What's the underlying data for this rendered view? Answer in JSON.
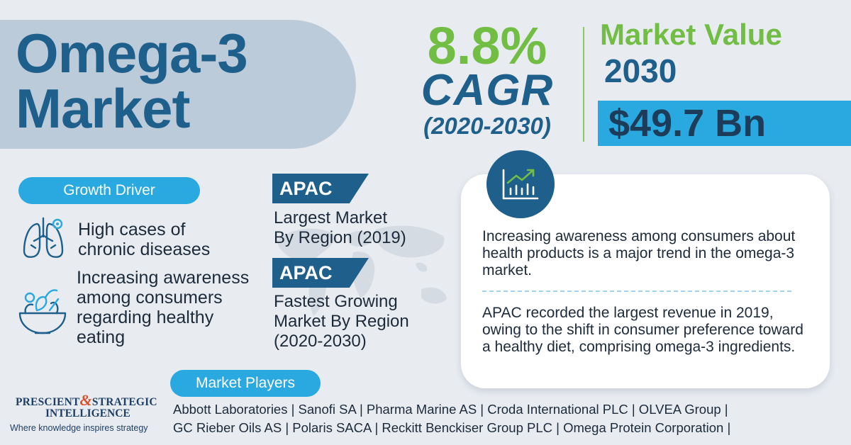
{
  "title": {
    "line1": "Omega-3",
    "line2": "Market"
  },
  "cagr": {
    "percent": "8.8%",
    "label": "CAGR",
    "period": "(2020-2030)"
  },
  "market_value": {
    "label": "Market Value",
    "year": "2030",
    "amount": "$49.7 Bn"
  },
  "growth_driver": {
    "heading": "Growth Driver",
    "items": [
      {
        "icon": "lungs-icon",
        "line1": "High cases of",
        "line2": "chronic diseases"
      },
      {
        "icon": "salad-bowl-icon",
        "line1": "Increasing awareness",
        "line2": "among consumers",
        "line3": "regarding healthy",
        "line4": "eating"
      }
    ]
  },
  "regions": [
    {
      "tag": "APAC",
      "line1": "Largest Market",
      "line2": "By Region (2019)"
    },
    {
      "tag": "APAC",
      "line1": "Fastest Growing",
      "line2": "Market By Region",
      "line3": "(2020-2030)"
    }
  ],
  "card": {
    "icon": "trend-chart-icon",
    "text1": "Increasing awareness among consumers about health products is a major trend in the omega-3 market.",
    "text2": "APAC recorded the largest revenue in 2019, owing to the shift in consumer preference toward a healthy diet, comprising omega-3 ingredients."
  },
  "market_players": {
    "heading": "Market Players",
    "line1": "Abbott Laboratories | Sanofi SA | Pharma Marine AS | Croda International PLC | OLVEA Group |",
    "line2": "GC Rieber Oils AS | Polaris SACA | Reckitt Benckiser Group PLC | Omega Protein Corporation |"
  },
  "logo": {
    "word1": "PRESCIENT",
    "amp": "&",
    "word2": "STRATEGIC",
    "word3": "INTELLIGENCE",
    "tagline": "Where knowledge inspires strategy"
  },
  "colors": {
    "primary": "#1f5f8b",
    "accent_blue": "#2aa9e0",
    "accent_green": "#72be44",
    "background": "#e8ecf1"
  }
}
